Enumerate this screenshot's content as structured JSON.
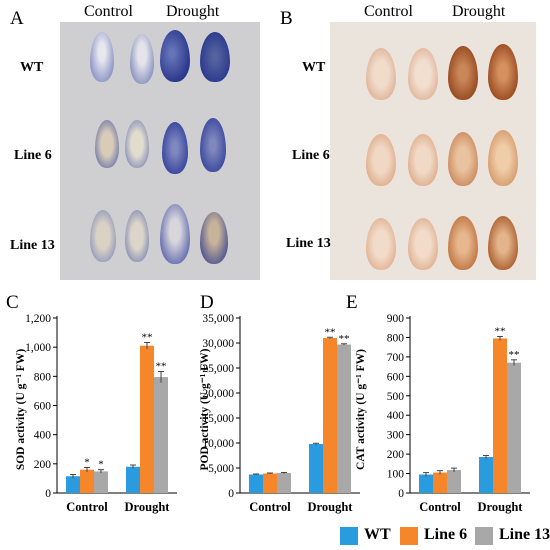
{
  "photo_panels": [
    {
      "letter": "A",
      "col_control": "Control",
      "col_drought": "Drought",
      "rows": [
        "WT",
        "Line 6",
        "Line 13"
      ]
    },
    {
      "letter": "B",
      "col_control": "Control",
      "col_drought": "Drought",
      "rows": [
        "WT",
        "Line 6",
        "Line 13"
      ]
    }
  ],
  "chart_data": [
    {
      "type": "bar",
      "panel": "C",
      "ylabel": "SOD activity (U g⁻¹ FW)",
      "categories": [
        "Control",
        "Drought"
      ],
      "ylim": [
        0,
        1200
      ],
      "yticks": [
        0,
        200,
        400,
        600,
        800,
        1000,
        1200
      ],
      "ytick_labels": [
        "0",
        "200",
        "400",
        "600",
        "800",
        "1,000",
        "1,200"
      ],
      "series": [
        {
          "name": "WT",
          "values": [
            115,
            180
          ],
          "errors": [
            12,
            12
          ],
          "sig": [
            "",
            ""
          ]
        },
        {
          "name": "Line 6",
          "values": [
            160,
            1010
          ],
          "errors": [
            15,
            22
          ],
          "sig": [
            "*",
            "**"
          ]
        },
        {
          "name": "Line 13",
          "values": [
            148,
            795
          ],
          "errors": [
            12,
            38
          ],
          "sig": [
            "*",
            "**"
          ]
        }
      ]
    },
    {
      "type": "bar",
      "panel": "D",
      "ylabel": "POD activity (U g⁻¹ FW)",
      "categories": [
        "Control",
        "Drought"
      ],
      "ylim": [
        0,
        35000
      ],
      "yticks": [
        0,
        5000,
        10000,
        15000,
        20000,
        25000,
        30000,
        35000
      ],
      "ytick_labels": [
        "0",
        "5,000",
        "10,000",
        "15,000",
        "20,000",
        "25,000",
        "30,000",
        "35,000"
      ],
      "series": [
        {
          "name": "WT",
          "values": [
            3700,
            9800
          ],
          "errors": [
            100,
            150
          ],
          "sig": [
            "",
            ""
          ]
        },
        {
          "name": "Line 6",
          "values": [
            3900,
            31000
          ],
          "errors": [
            100,
            150
          ],
          "sig": [
            "",
            "**"
          ]
        },
        {
          "name": "Line 13",
          "values": [
            4000,
            29700
          ],
          "errors": [
            100,
            150
          ],
          "sig": [
            "",
            "**"
          ]
        }
      ]
    },
    {
      "type": "bar",
      "panel": "E",
      "ylabel": "CAT activity (U g⁻¹ FW)",
      "categories": [
        "Control",
        "Drought"
      ],
      "ylim": [
        0,
        900
      ],
      "yticks": [
        0,
        100,
        200,
        300,
        400,
        500,
        600,
        700,
        800,
        900
      ],
      "ytick_labels": [
        "0",
        "100",
        "200",
        "300",
        "400",
        "500",
        "600",
        "700",
        "800",
        "900"
      ],
      "series": [
        {
          "name": "WT",
          "values": [
            95,
            185
          ],
          "errors": [
            10,
            8
          ],
          "sig": [
            "",
            ""
          ]
        },
        {
          "name": "Line 6",
          "values": [
            105,
            795
          ],
          "errors": [
            10,
            10
          ],
          "sig": [
            "",
            "**"
          ]
        },
        {
          "name": "Line 13",
          "values": [
            118,
            670
          ],
          "errors": [
            10,
            15
          ],
          "sig": [
            "",
            "**"
          ]
        }
      ]
    }
  ],
  "legend": [
    {
      "name": "WT",
      "color": "#2b9be0"
    },
    {
      "name": "Line 6",
      "color": "#f5862a"
    },
    {
      "name": "Line 13",
      "color": "#a8a8a8"
    }
  ],
  "colors": {
    "WT": "#2b9be0",
    "Line 6": "#f5862a",
    "Line 13": "#a8a8a8",
    "nbt_stain": "#2c3a8e",
    "dab_stain": "#8a3a10"
  }
}
